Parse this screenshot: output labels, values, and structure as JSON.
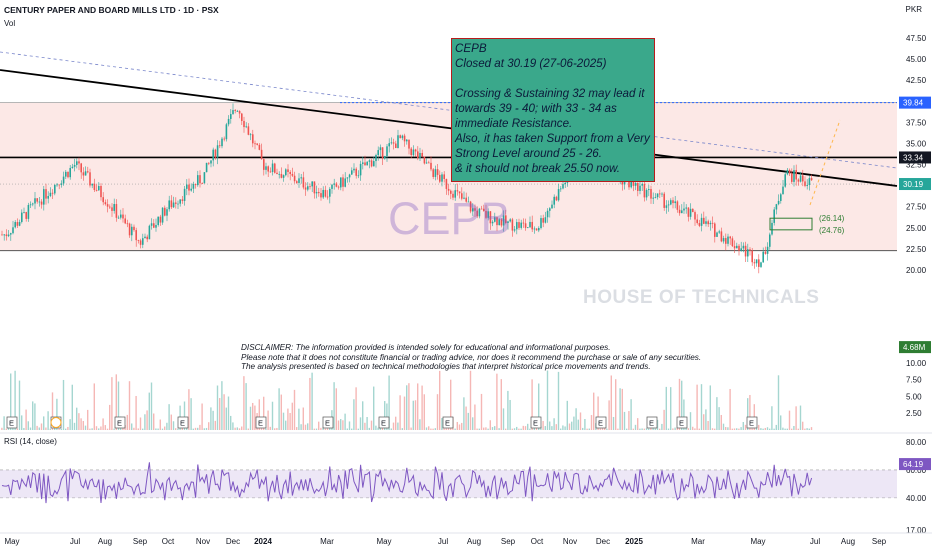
{
  "header": {
    "title": "CENTURY PAPER AND BOARD MILLS LTD · 1D · PSX",
    "indicator": "Vol",
    "currency": "PKR",
    "rsi_label": "RSI (14, close)"
  },
  "annotation": {
    "text": "CEPB\nClosed at 30.19 (27-06-2025)\n\nCrossing & Sustaining 32 may lead it towards 39 - 40; with 33 - 34 as immediate Resistance.\nAlso, it has taken Support from a Very Strong Level around 25 - 26.\n& it should not break 25.50 now."
  },
  "disclaimer": "DISCLAIMER: The information provided is intended solely for educational and informational purposes.\nPlease note that it does not constitute financial or trading advice, nor does it recommend the purchase or sale of any securities.\nThe analysis presented is based on technical methodologies that interpret historical price movements and trends.",
  "watermark": {
    "symbol": "CEPB",
    "brand": "HOUSE OF TECHNICALS"
  },
  "colors": {
    "up": "#26a69a",
    "down": "#ef5350",
    "rsi_line": "#7e57c2",
    "resistance_fill": "#fce8e6",
    "box_fill": "#2e9e8e",
    "box_border": "#b71c1c",
    "label_blue": "#2962ff",
    "label_black": "#131722",
    "label_green": "#2e7d32"
  },
  "chart_data": [
    {
      "type": "candlestick",
      "title": "CENTURY PAPER AND BOARD MILLS LTD · 1D · PSX",
      "ylim": [
        17.5,
        48.5
      ],
      "y_ticks": [
        20.0,
        22.5,
        25.0,
        27.5,
        30.0,
        32.5,
        35.0,
        37.5,
        40.0,
        42.5,
        45.0,
        47.5
      ],
      "x_ticks": [
        "May",
        "Jul",
        "Aug",
        "Sep",
        "Oct",
        "Nov",
        "Dec",
        "2024",
        "Mar",
        "May",
        "Jul",
        "Aug",
        "Sep",
        "Oct",
        "Nov",
        "Dec",
        "2025",
        "Mar",
        "May",
        "Jul",
        "Aug",
        "Sep"
      ],
      "price_path": [
        [
          "May",
          24.2
        ],
        [
          "Jul",
          32.5
        ],
        [
          "Aug",
          28.5
        ],
        [
          "Sep",
          23.2
        ],
        [
          "Oct",
          27.5
        ],
        [
          "Nov",
          31.0
        ],
        [
          "Dec",
          39.5
        ],
        [
          "2024",
          32.5
        ],
        [
          "Mar",
          29.0
        ],
        [
          "May",
          35.5
        ],
        [
          "Jul",
          30.5
        ],
        [
          "Aug",
          27.0
        ],
        [
          "Sep",
          25.5
        ],
        [
          "Oct",
          25.0
        ],
        [
          "Nov",
          34.5
        ],
        [
          "Dec",
          32.0
        ],
        [
          "2025",
          30.0
        ],
        [
          "Mar",
          26.0
        ],
        [
          "May",
          20.9
        ],
        [
          "Jun",
          31.5
        ],
        [
          "Jul",
          30.19
        ]
      ],
      "last_close": 30.19,
      "levels": [
        {
          "label": "39.84",
          "value": 39.84,
          "style": "dotted-blue"
        },
        {
          "label": "33.34",
          "value": 33.34,
          "style": "solid-black"
        },
        {
          "label": "30.19",
          "value": 30.19,
          "style": "last-price"
        },
        {
          "label": "22.30",
          "value": 22.3,
          "style": "solid-black"
        },
        {
          "label": "(26.14)",
          "value": 26.14,
          "style": "green-support"
        },
        {
          "label": "(24.76)",
          "value": 24.76,
          "style": "green-support"
        }
      ],
      "grid": false
    },
    {
      "type": "bar",
      "title": "Vol",
      "ylim": [
        0,
        13.0
      ],
      "y_ticks": [
        2.5,
        5.0,
        7.5,
        10.0,
        12.5
      ],
      "last_value": "4.68M",
      "events": [
        "E",
        "E",
        "E",
        "E",
        "E",
        "E",
        "E",
        "E",
        "E",
        "E",
        "E",
        "E",
        "E"
      ]
    },
    {
      "type": "line",
      "title": "RSI (14, close)",
      "ylim": [
        17.0,
        83.0
      ],
      "y_ticks": [
        17.0,
        40.0,
        60.0,
        80.0
      ],
      "band": [
        40,
        60
      ],
      "last_value": "64.19"
    }
  ]
}
